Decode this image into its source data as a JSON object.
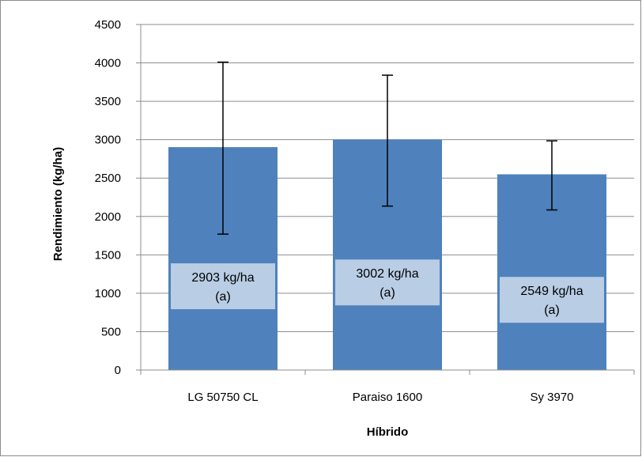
{
  "chart_data": {
    "type": "bar",
    "categories": [
      "LG 50750 CL",
      "Paraiso 1600",
      "Sy 3970"
    ],
    "values": [
      2903,
      3002,
      2549
    ],
    "error_high": [
      4010,
      3840,
      2985
    ],
    "error_low": [
      1770,
      2135,
      2085
    ],
    "data_labels": [
      [
        "2903 kg/ha",
        "(a)"
      ],
      [
        "3002 kg/ha",
        "(a)"
      ],
      [
        "2549 kg/ha",
        "(a)"
      ]
    ],
    "xlabel": "Híbrido",
    "ylabel": "Rendimiento (kg/ha)",
    "ylim": [
      0,
      4500
    ],
    "yticks": [
      0,
      500,
      1000,
      1500,
      2000,
      2500,
      3000,
      3500,
      4000,
      4500
    ],
    "grid": true,
    "legend": "none",
    "colors": {
      "bar": "#4f81bd",
      "label_box": "#b9cde5"
    }
  }
}
